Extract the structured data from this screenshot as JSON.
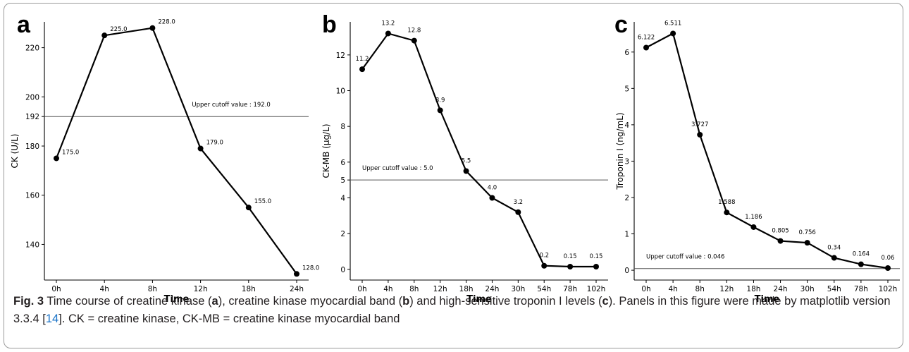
{
  "caption": {
    "label": "Fig. 3",
    "seg1": "  Time course of creatine kinase (",
    "ref_a": "a",
    "seg2": "), creatine kinase myocardial band (",
    "ref_b": "b",
    "seg3": ") and high-sensitive troponin I levels (",
    "ref_c": "c",
    "seg4": "). Panels in this figure were made by matplotlib version 3.3.4 [",
    "citation": "14",
    "seg5": "]. CK = creatine kinase, CK-MB = creatine kinase myocardial band"
  },
  "chart_data": [
    {
      "type": "line",
      "panel": "a",
      "xlabel": "Time",
      "ylabel": "CK (U/L)",
      "categories": [
        "0h",
        "4h",
        "8h",
        "12h",
        "18h",
        "24h"
      ],
      "series": [
        {
          "values": [
            175.0,
            225.0,
            228.0,
            179.0,
            155.0,
            128.0
          ]
        }
      ],
      "data_labels": [
        "175.0",
        "225.0",
        "228.0",
        "179.0",
        "155.0",
        "128.0"
      ],
      "yticks": [
        140,
        160,
        180,
        192,
        200,
        220
      ],
      "ylim": [
        125.5,
        230.5
      ],
      "cutoff": {
        "value": 192.0,
        "label": "Upper cutoff value : 192.0"
      },
      "grid": false,
      "color": "#000000"
    },
    {
      "type": "line",
      "panel": "b",
      "xlabel": "Time",
      "ylabel": "CK-MB (µg/L)",
      "categories": [
        "0h",
        "4h",
        "8h",
        "12h",
        "18h",
        "24h",
        "30h",
        "54h",
        "78h",
        "102h"
      ],
      "series": [
        {
          "values": [
            11.2,
            13.2,
            12.8,
            8.9,
            5.5,
            4.0,
            3.2,
            0.2,
            0.15,
            0.15
          ]
        }
      ],
      "data_labels": [
        "11.2",
        "13.2",
        "12.8",
        "8.9",
        "5.5",
        "4.0",
        "3.2",
        "0.2",
        "0.15",
        "0.15"
      ],
      "yticks": [
        0,
        2,
        4,
        5,
        6,
        8,
        10,
        12
      ],
      "ylim": [
        -0.6,
        13.85
      ],
      "cutoff": {
        "value": 5.0,
        "label": "Upper cutoff value : 5.0"
      },
      "grid": false,
      "color": "#000000"
    },
    {
      "type": "line",
      "panel": "c",
      "xlabel": "Time",
      "ylabel": "Troponin I (ng/mL)",
      "categories": [
        "0h",
        "4h",
        "8h",
        "12h",
        "18h",
        "24h",
        "30h",
        "54h",
        "78h",
        "102h"
      ],
      "series": [
        {
          "values": [
            6.122,
            6.511,
            3.727,
            1.588,
            1.186,
            0.805,
            0.756,
            0.34,
            0.164,
            0.06
          ]
        }
      ],
      "data_labels": [
        "6.122",
        "6.511",
        "3.727",
        "1.588",
        "1.186",
        "0.805",
        "0.756",
        "0.34",
        "0.164",
        "0.06"
      ],
      "yticks": [
        0,
        1,
        2,
        3,
        4,
        5,
        6
      ],
      "ylim": [
        -0.27,
        6.83
      ],
      "cutoff": {
        "value": 0.046,
        "label": "Upper cutoff value : 0.046"
      },
      "grid": false,
      "color": "#000000"
    }
  ]
}
